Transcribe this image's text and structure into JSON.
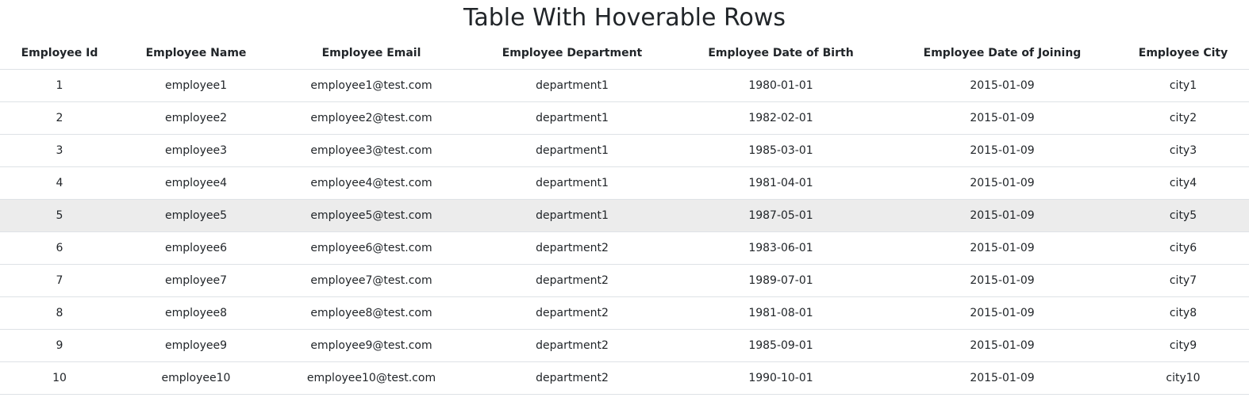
{
  "title": "Table With Hoverable Rows",
  "columns": [
    "Employee Id",
    "Employee Name",
    "Employee Email",
    "Employee Department",
    "Employee Date of Birth",
    "Employee Date of Joining",
    "Employee City"
  ],
  "rows": [
    [
      "1",
      "employee1",
      "employee1@test.com",
      "department1",
      "1980-01-01",
      "2015-01-09",
      "city1"
    ],
    [
      "2",
      "employee2",
      "employee2@test.com",
      "department1",
      "1982-02-01",
      "2015-01-09",
      "city2"
    ],
    [
      "3",
      "employee3",
      "employee3@test.com",
      "department1",
      "1985-03-01",
      "2015-01-09",
      "city3"
    ],
    [
      "4",
      "employee4",
      "employee4@test.com",
      "department1",
      "1981-04-01",
      "2015-01-09",
      "city4"
    ],
    [
      "5",
      "employee5",
      "employee5@test.com",
      "department1",
      "1987-05-01",
      "2015-01-09",
      "city5"
    ],
    [
      "6",
      "employee6",
      "employee6@test.com",
      "department2",
      "1983-06-01",
      "2015-01-09",
      "city6"
    ],
    [
      "7",
      "employee7",
      "employee7@test.com",
      "department2",
      "1989-07-01",
      "2015-01-09",
      "city7"
    ],
    [
      "8",
      "employee8",
      "employee8@test.com",
      "department2",
      "1981-08-01",
      "2015-01-09",
      "city8"
    ],
    [
      "9",
      "employee9",
      "employee9@test.com",
      "department2",
      "1985-09-01",
      "2015-01-09",
      "city9"
    ],
    [
      "10",
      "employee10",
      "employee10@test.com",
      "department2",
      "1990-10-01",
      "2015-01-09",
      "city10"
    ]
  ],
  "hovered_row": 4,
  "colors": {
    "hover_background": "#ececec",
    "border": "#dee2e6",
    "text": "#212529"
  }
}
